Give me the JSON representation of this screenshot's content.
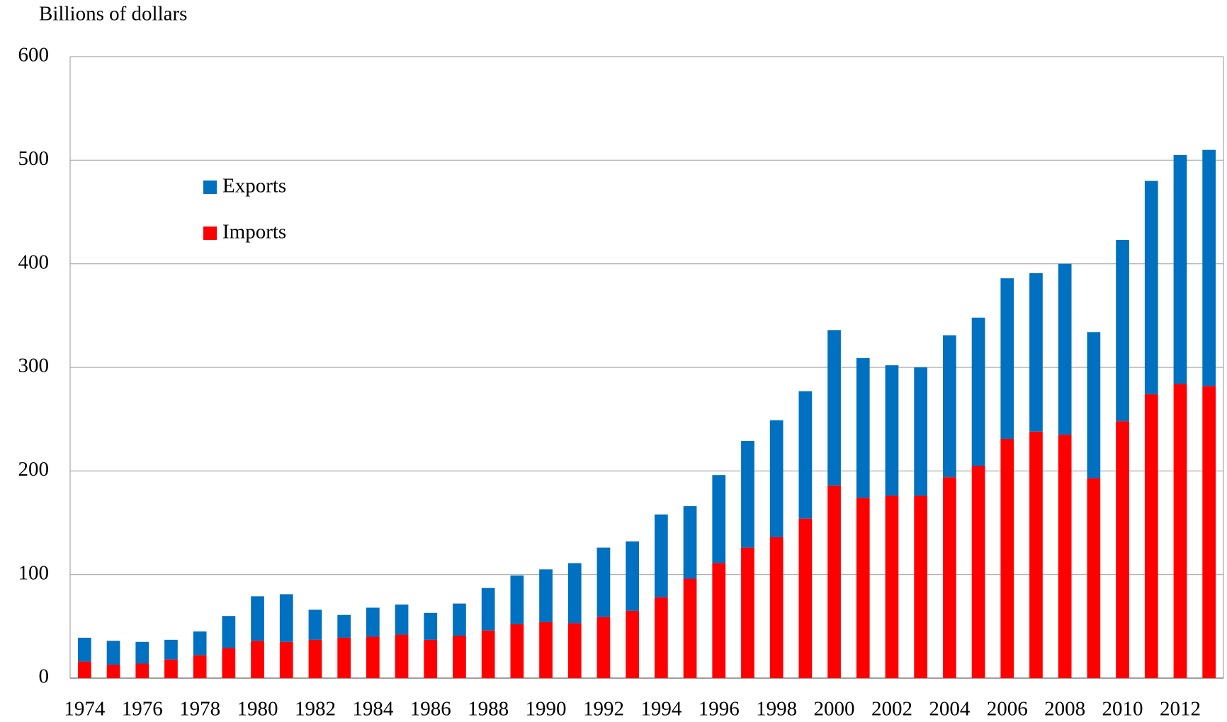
{
  "chart_data": {
    "type": "stacked_bar",
    "y_axis_label": "Billions of dollars",
    "categories": [
      "1974",
      null,
      "1976",
      null,
      "1978",
      null,
      "1980",
      null,
      "1982",
      null,
      "1984",
      null,
      "1986",
      null,
      "1988",
      null,
      "1990",
      null,
      "1992",
      null,
      "1994",
      null,
      "1996",
      null,
      "1998",
      null,
      "2000",
      null,
      "2002",
      null,
      "2004",
      null,
      "2006",
      null,
      "2008",
      null,
      "2010",
      null,
      "2012",
      null
    ],
    "series": [
      {
        "name": "Exports",
        "color": "#0070c0",
        "values": [
          23,
          23,
          21,
          19,
          23,
          31,
          43,
          46,
          29,
          22,
          28,
          29,
          26,
          31,
          41,
          47,
          51,
          58,
          67,
          67,
          80,
          70,
          85,
          103,
          113,
          123,
          150,
          135,
          126,
          124,
          137,
          143,
          155,
          153,
          165,
          141,
          175,
          206,
          221,
          228
        ]
      },
      {
        "name": "Imports",
        "color": "#ff0000",
        "values": [
          16,
          13,
          14,
          18,
          22,
          29,
          36,
          35,
          37,
          39,
          40,
          42,
          37,
          41,
          46,
          52,
          54,
          53,
          59,
          65,
          78,
          96,
          111,
          126,
          136,
          154,
          186,
          174,
          176,
          176,
          194,
          205,
          231,
          238,
          235,
          193,
          248,
          274,
          284,
          282
        ]
      }
    ],
    "stack_order": "bottom-up from last series",
    "ylim": [
      0,
      600
    ],
    "yticks": [
      0,
      100,
      200,
      300,
      400,
      500,
      600
    ],
    "grid": true,
    "legend": "upper left"
  }
}
